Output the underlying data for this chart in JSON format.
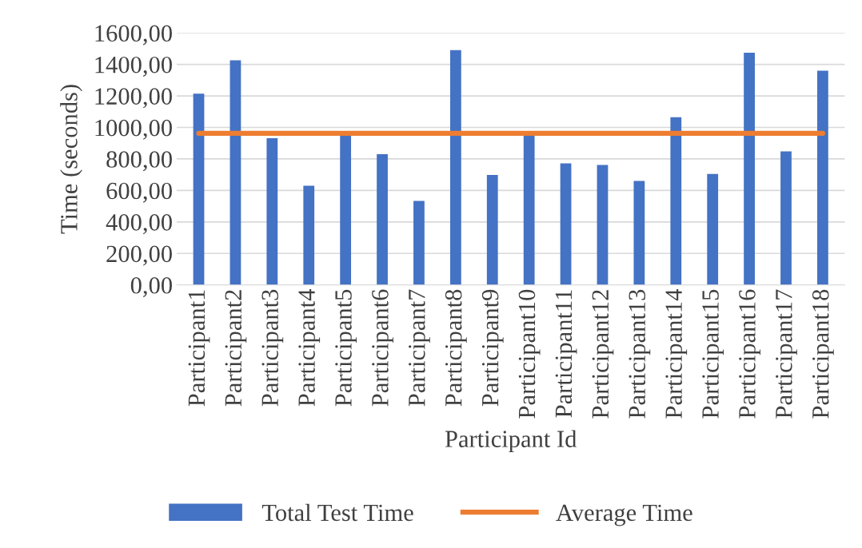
{
  "chart_data": {
    "type": "bar",
    "xlabel": "Participant Id",
    "ylabel": "Time (seconds)",
    "categories": [
      "Participant1",
      "Participant2",
      "Participant3",
      "Participant4",
      "Participant5",
      "Participant6",
      "Participant7",
      "Participant8",
      "Participant9",
      "Participant10",
      "Participant11",
      "Participant12",
      "Participant13",
      "Participant14",
      "Participant15",
      "Participant16",
      "Participant17",
      "Participant18"
    ],
    "series": [
      {
        "name": "Total Test Time",
        "color": "#4472c4",
        "values": [
          1214,
          1426,
          932,
          630,
          960,
          830,
          534,
          1490,
          698,
          955,
          772,
          762,
          660,
          1065,
          705,
          1474,
          848,
          1360
        ]
      },
      {
        "name": "Average Time",
        "type": "line",
        "color": "#ed7d31",
        "values": [
          962,
          962,
          962,
          962,
          962,
          962,
          962,
          962,
          962,
          962,
          962,
          962,
          962,
          962,
          962,
          962,
          962,
          962
        ]
      }
    ],
    "ylim": [
      0,
      1600
    ],
    "yticks": [
      {
        "value": 0,
        "label": "0,00"
      },
      {
        "value": 200,
        "label": "200,00"
      },
      {
        "value": 400,
        "label": "400,00"
      },
      {
        "value": 600,
        "label": "600,00"
      },
      {
        "value": 800,
        "label": "800,00"
      },
      {
        "value": 1000,
        "label": "1000,00"
      },
      {
        "value": 1200,
        "label": "1200,00"
      },
      {
        "value": 1400,
        "label": "1400,00"
      },
      {
        "value": 1600,
        "label": "1600,00"
      }
    ],
    "grid": "y",
    "legend": "bottom"
  }
}
